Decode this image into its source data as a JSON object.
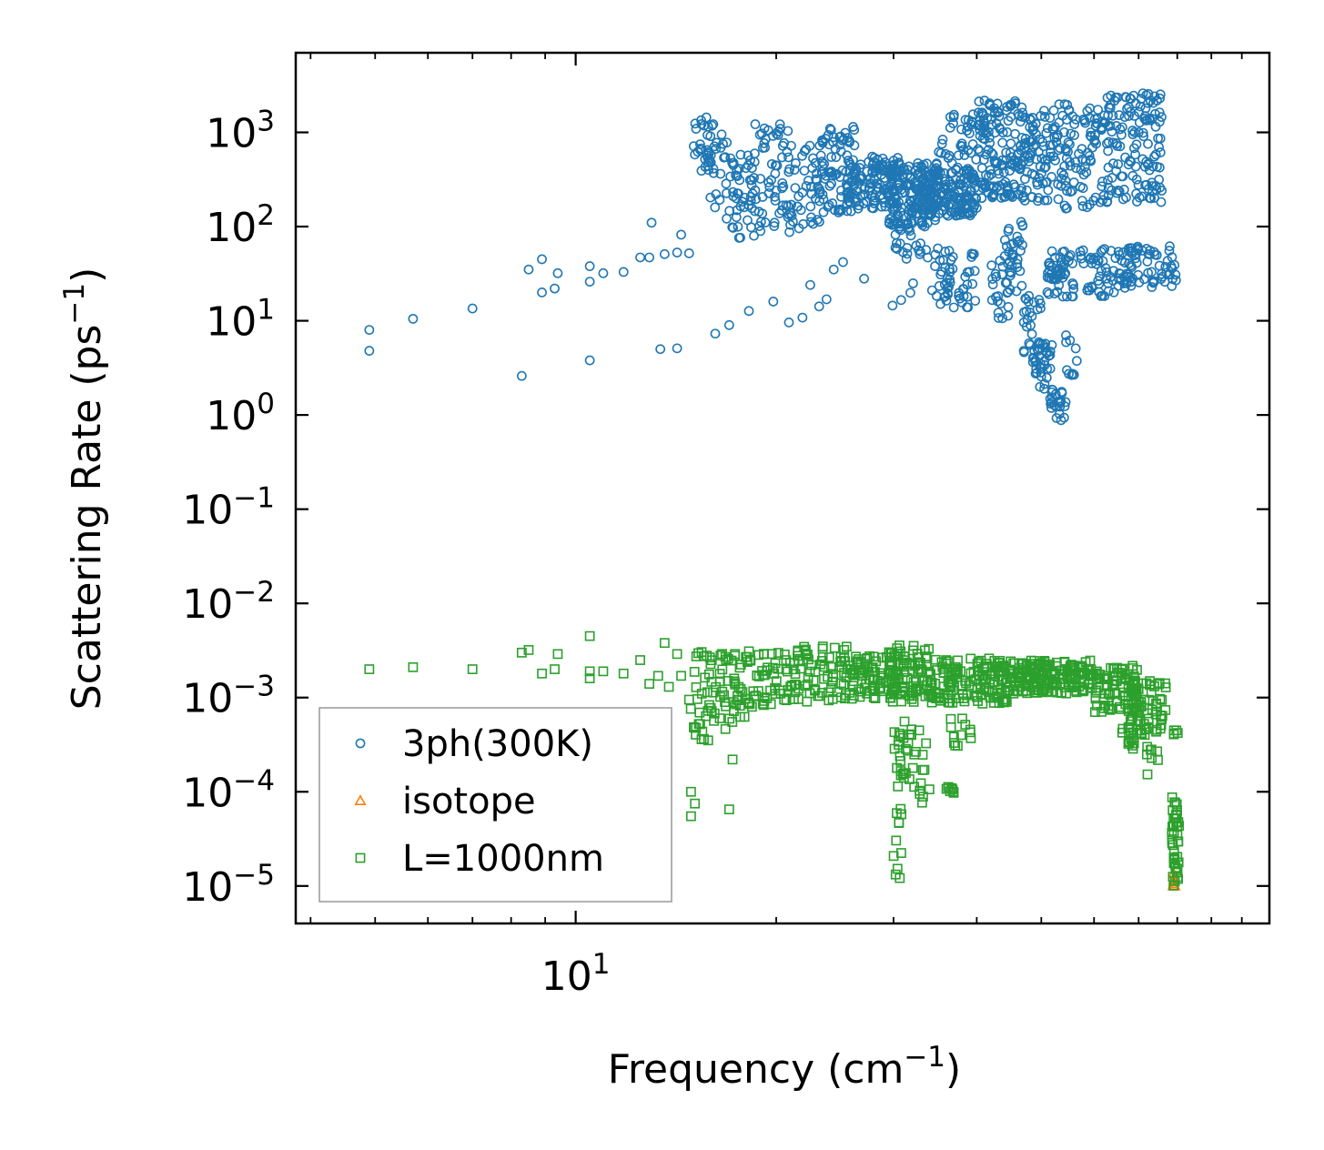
{
  "chart_data": {
    "type": "scatter",
    "title": "",
    "xlabel": "Frequency (cm$^{-1}$)",
    "xlabel_main": "Frequency (cm",
    "xlabel_sup": "−1",
    "xlabel_close": ")",
    "ylabel": "Scattering Rate (ps$^{-1}$)",
    "ylabel_main": "Scattering Rate (ps",
    "ylabel_sup": "−1",
    "ylabel_close": ")",
    "xscale": "log",
    "yscale": "log",
    "xlim": [
      3.8,
      110
    ],
    "ylim": [
      4e-06,
      7000
    ],
    "x_major_ticks": [
      {
        "value": 10,
        "base": "10",
        "exp": "1"
      }
    ],
    "x_minor_ticks": [
      4,
      5,
      6,
      7,
      8,
      9,
      20,
      30,
      40,
      50,
      60,
      70,
      80,
      90,
      100
    ],
    "y_major_ticks": [
      {
        "value": 1e-05,
        "base": "10",
        "exp": "−5"
      },
      {
        "value": 0.0001,
        "base": "10",
        "exp": "−4"
      },
      {
        "value": 0.001,
        "base": "10",
        "exp": "−3"
      },
      {
        "value": 0.01,
        "base": "10",
        "exp": "−2"
      },
      {
        "value": 0.1,
        "base": "10",
        "exp": "−1"
      },
      {
        "value": 1,
        "base": "10",
        "exp": "0"
      },
      {
        "value": 10,
        "base": "10",
        "exp": "1"
      },
      {
        "value": 100,
        "base": "10",
        "exp": "2"
      },
      {
        "value": 1000,
        "base": "10",
        "exp": "3"
      }
    ],
    "legend_position": "lower-left",
    "series": [
      {
        "name": "3ph(300K)",
        "marker": "circle",
        "color": "#1f77b4",
        "points": [
          [
            4.9,
            8.0
          ],
          [
            4.9,
            4.8
          ],
          [
            5.7,
            10.5
          ],
          [
            7.0,
            13.5
          ],
          [
            8.3,
            2.6
          ],
          [
            8.5,
            35
          ],
          [
            8.9,
            45
          ],
          [
            8.9,
            20
          ],
          [
            9.3,
            22
          ],
          [
            9.4,
            32
          ],
          [
            10.5,
            38
          ],
          [
            10.5,
            26
          ],
          [
            10.5,
            3.8
          ],
          [
            11.0,
            32
          ],
          [
            11.8,
            33
          ],
          [
            12.5,
            47
          ],
          [
            12.9,
            47
          ],
          [
            13.0,
            110
          ],
          [
            13.6,
            51
          ],
          [
            14.2,
            53
          ],
          [
            14.4,
            82
          ],
          [
            14.8,
            52
          ],
          [
            13.4,
            5.0
          ],
          [
            14.2,
            5.1
          ],
          [
            16.2,
            7.3
          ],
          [
            17.0,
            9.0
          ],
          [
            18.2,
            12.7
          ],
          [
            19.8,
            16.0
          ],
          [
            20.9,
            9.6
          ],
          [
            21.9,
            10.8
          ],
          [
            22.5,
            24
          ],
          [
            23.2,
            14.2
          ],
          [
            23.8,
            16.9
          ],
          [
            24.4,
            35
          ],
          [
            25.2,
            42
          ],
          [
            27.1,
            28
          ],
          [
            29.9,
            14.5
          ],
          [
            30.8,
            16.6
          ],
          [
            31.8,
            19.8
          ],
          [
            32.1,
            25
          ]
        ],
        "clusters": [
          {
            "xmin": 14.9,
            "xmax": 16.2,
            "ymin": 380,
            "ymax": 1450,
            "n": 30
          },
          {
            "xmin": 15.8,
            "xmax": 17.4,
            "ymin": 120,
            "ymax": 1050,
            "n": 25
          },
          {
            "xmin": 17.0,
            "xmax": 19.0,
            "ymin": 75,
            "ymax": 600,
            "n": 45
          },
          {
            "xmin": 18.5,
            "xmax": 21.0,
            "ymin": 80,
            "ymax": 1250,
            "n": 50
          },
          {
            "xmin": 20.8,
            "xmax": 23.5,
            "ymin": 95,
            "ymax": 750,
            "n": 50
          },
          {
            "xmin": 23.0,
            "xmax": 26.5,
            "ymin": 140,
            "ymax": 1150,
            "n": 80
          },
          {
            "xmin": 25.5,
            "xmax": 30.5,
            "ymin": 150,
            "ymax": 560,
            "n": 110
          },
          {
            "xmin": 29.5,
            "xmax": 35.0,
            "ymin": 100,
            "ymax": 500,
            "n": 150
          },
          {
            "xmin": 33.0,
            "xmax": 40.0,
            "ymin": 130,
            "ymax": 420,
            "n": 160
          },
          {
            "xmin": 35.0,
            "xmax": 40.5,
            "ymin": 380,
            "ymax": 1800,
            "n": 40
          },
          {
            "xmin": 40.0,
            "xmax": 47.0,
            "ymin": 200,
            "ymax": 2200,
            "n": 140
          },
          {
            "xmin": 47.0,
            "xmax": 62.0,
            "ymin": 150,
            "ymax": 2000,
            "n": 170
          },
          {
            "xmin": 62.0,
            "xmax": 76.0,
            "ymin": 180,
            "ymax": 2600,
            "n": 140
          },
          {
            "xmin": 30.0,
            "xmax": 33.0,
            "ymin": 40,
            "ymax": 110,
            "n": 25
          },
          {
            "xmin": 33.5,
            "xmax": 36.5,
            "ymin": 15,
            "ymax": 70,
            "n": 30
          },
          {
            "xmin": 36.5,
            "xmax": 40.0,
            "ymin": 12,
            "ymax": 60,
            "n": 25
          },
          {
            "xmin": 42.0,
            "xmax": 45.0,
            "ymin": 9,
            "ymax": 45,
            "n": 25
          },
          {
            "xmin": 44.0,
            "xmax": 47.0,
            "ymin": 20,
            "ymax": 120,
            "n": 30
          },
          {
            "xmin": 47.0,
            "xmax": 50.0,
            "ymin": 2.8,
            "ymax": 20,
            "n": 35
          },
          {
            "xmin": 49.0,
            "xmax": 52.0,
            "ymin": 1.5,
            "ymax": 6,
            "n": 30
          },
          {
            "xmin": 51.0,
            "xmax": 55.0,
            "ymin": 0.85,
            "ymax": 1.8,
            "n": 20
          },
          {
            "xmin": 51.0,
            "xmax": 56.0,
            "ymin": 18,
            "ymax": 55,
            "n": 50
          },
          {
            "xmin": 54.0,
            "xmax": 57.0,
            "ymin": 2.5,
            "ymax": 8,
            "n": 10
          },
          {
            "xmin": 57.0,
            "xmax": 66.0,
            "ymin": 18,
            "ymax": 60,
            "n": 50
          },
          {
            "xmin": 66.0,
            "xmax": 80.0,
            "ymin": 22,
            "ymax": 62,
            "n": 70
          }
        ]
      },
      {
        "name": "isotope",
        "marker": "triangle",
        "color": "#ff7f0e",
        "points": [
          [
            78.9,
            1e-05
          ],
          [
            79.0,
            1.05e-05
          ],
          [
            79.1,
            1.1e-05
          ],
          [
            79.2,
            1.2e-05
          ],
          [
            79.0,
            1.35e-05
          ],
          [
            79.3,
            1e-05
          ],
          [
            79.1,
            1.15e-05
          ]
        ],
        "clusters": []
      },
      {
        "name": "L=1000nm",
        "marker": "square",
        "color": "#2ca02c",
        "points": [
          [
            4.9,
            0.002
          ],
          [
            5.7,
            0.0021
          ],
          [
            7.0,
            0.002
          ],
          [
            8.3,
            0.003
          ],
          [
            8.5,
            0.0032
          ],
          [
            8.9,
            0.0018
          ],
          [
            9.3,
            0.002
          ],
          [
            9.4,
            0.0029
          ],
          [
            10.5,
            0.0045
          ],
          [
            10.5,
            0.0019
          ],
          [
            10.5,
            0.0016
          ],
          [
            11.0,
            0.0019
          ],
          [
            11.8,
            0.0018
          ],
          [
            12.5,
            0.0025
          ],
          [
            12.9,
            0.0014
          ],
          [
            13.3,
            0.0017
          ],
          [
            13.6,
            0.0038
          ],
          [
            13.8,
            0.0013
          ],
          [
            14.2,
            0.0029
          ],
          [
            14.4,
            0.0017
          ],
          [
            14.8,
            0.00095
          ],
          [
            14.9,
            0.0001
          ],
          [
            15.1,
            7.5e-05
          ],
          [
            14.9,
            5.5e-05
          ],
          [
            16.5,
            0.0028
          ],
          [
            17.0,
            6.5e-05
          ],
          [
            17.2,
            0.00022
          ],
          [
            18.2,
            0.0031
          ]
        ],
        "clusters": [
          {
            "xmin": 14.8,
            "xmax": 16.5,
            "ymin": 0.00035,
            "ymax": 0.0008,
            "n": 15
          },
          {
            "xmin": 15.0,
            "xmax": 17.5,
            "ymin": 0.0008,
            "ymax": 0.0032,
            "n": 35
          },
          {
            "xmin": 16.0,
            "xmax": 18.5,
            "ymin": 0.00045,
            "ymax": 0.0009,
            "n": 15
          },
          {
            "xmin": 17.0,
            "xmax": 21.0,
            "ymin": 0.0008,
            "ymax": 0.003,
            "n": 60
          },
          {
            "xmin": 21.0,
            "xmax": 26.0,
            "ymin": 0.0009,
            "ymax": 0.0035,
            "n": 80
          },
          {
            "xmin": 26.0,
            "xmax": 30.0,
            "ymin": 0.00095,
            "ymax": 0.0028,
            "n": 70
          },
          {
            "xmin": 29.5,
            "xmax": 34.0,
            "ymin": 0.0009,
            "ymax": 0.0036,
            "n": 90
          },
          {
            "xmin": 34.0,
            "xmax": 45.0,
            "ymin": 0.00085,
            "ymax": 0.0026,
            "n": 150
          },
          {
            "xmin": 45.0,
            "xmax": 60.0,
            "ymin": 0.0011,
            "ymax": 0.0025,
            "n": 170
          },
          {
            "xmin": 60.0,
            "xmax": 70.0,
            "ymin": 0.0007,
            "ymax": 0.0022,
            "n": 90
          },
          {
            "xmin": 68.0,
            "xmax": 77.0,
            "ymin": 0.0004,
            "ymax": 0.0015,
            "n": 60
          },
          {
            "xmin": 66.0,
            "xmax": 69.0,
            "ymin": 0.00025,
            "ymax": 0.0005,
            "n": 15
          },
          {
            "xmin": 72.0,
            "xmax": 75.0,
            "ymin": 0.00015,
            "ymax": 0.0003,
            "n": 8
          },
          {
            "xmin": 30.0,
            "xmax": 32.0,
            "ymin": 0.00013,
            "ymax": 0.0006,
            "n": 25
          },
          {
            "xmin": 30.0,
            "xmax": 31.0,
            "ymin": 1.2e-05,
            "ymax": 0.00013,
            "n": 12
          },
          {
            "xmin": 32.0,
            "xmax": 34.0,
            "ymin": 6e-05,
            "ymax": 0.00045,
            "n": 15
          },
          {
            "xmin": 35.5,
            "xmax": 37.0,
            "ymin": 9.5e-05,
            "ymax": 0.00012,
            "n": 8
          },
          {
            "xmin": 36.5,
            "xmax": 39.5,
            "ymin": 0.0003,
            "ymax": 0.0006,
            "n": 12
          },
          {
            "xmin": 78.5,
            "xmax": 80.5,
            "ymin": 1e-05,
            "ymax": 9e-05,
            "n": 40
          },
          {
            "xmin": 79.0,
            "xmax": 80.5,
            "ymin": 0.0004,
            "ymax": 0.00045,
            "n": 5
          }
        ]
      }
    ]
  }
}
